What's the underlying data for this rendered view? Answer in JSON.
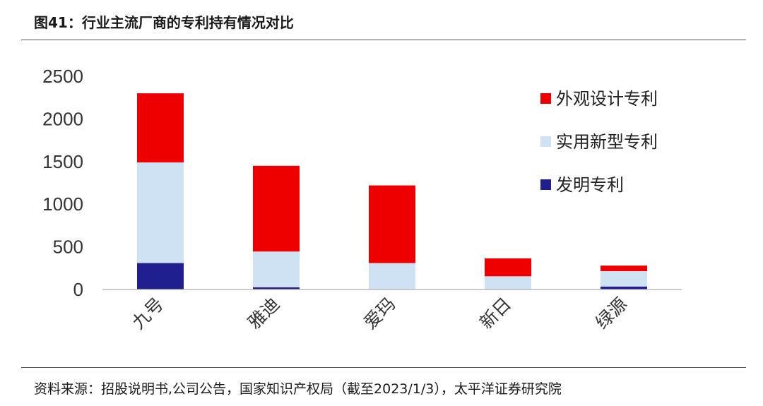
{
  "header": {
    "title": "图41：行业主流厂商的专利持有情况对比"
  },
  "footer": {
    "source": "资料来源：招股说明书,公司公告，国家知识产权局（截至2023/1/3），太平洋证券研究院"
  },
  "chart_data": {
    "type": "bar",
    "stacked": true,
    "title": "",
    "xlabel": "",
    "ylabel": "",
    "ylim": [
      0,
      2500
    ],
    "yticks": [
      0,
      500,
      1000,
      1500,
      2000,
      2500
    ],
    "categories": [
      "九号",
      "雅迪",
      "爱玛",
      "新日",
      "绿源"
    ],
    "series": [
      {
        "name": "发明专利",
        "color": "#1f1f8f",
        "values": [
          310,
          25,
          5,
          5,
          35
        ]
      },
      {
        "name": "实用新型专利",
        "color": "#cfe2f3",
        "values": [
          1180,
          420,
          305,
          150,
          180
        ]
      },
      {
        "name": "外观设计专利",
        "color": "#ee0000",
        "values": [
          810,
          1005,
          910,
          210,
          65
        ]
      }
    ],
    "legend_order": [
      "外观设计专利",
      "实用新型专利",
      "发明专利"
    ],
    "legend_position": "right",
    "grid": false
  }
}
